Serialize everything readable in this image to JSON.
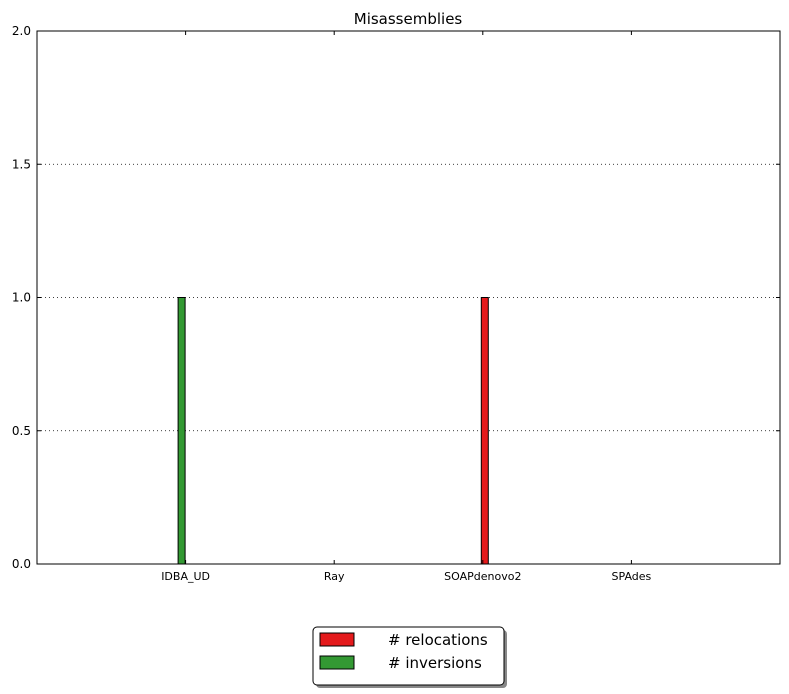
{
  "chart_data": {
    "type": "bar",
    "title": "Misassemblies",
    "xlabel": "",
    "ylabel": "",
    "categories": [
      "IDBA_UD",
      "Ray",
      "SOAPdenovo2",
      "SPAdes"
    ],
    "series": [
      {
        "name": "# relocations",
        "values": [
          0,
          0,
          1,
          0
        ],
        "color": "#e41a1c"
      },
      {
        "name": "# inversions",
        "values": [
          1,
          0,
          0,
          0
        ],
        "color": "#339933"
      }
    ],
    "ylim": [
      0,
      2
    ],
    "yticks": [
      0,
      0.5,
      1,
      1.5,
      2
    ],
    "ytick_labels": [
      "0.0",
      "0.5",
      "1.0",
      "1.5",
      "2.0"
    ],
    "grid": "horizontal-dotted",
    "legend_position": "bottom-center"
  }
}
